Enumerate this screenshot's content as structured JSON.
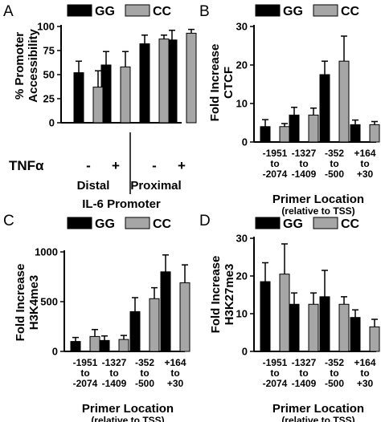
{
  "colors": {
    "gg": "#000000",
    "cc": "#a6a6a6"
  },
  "chart_data": [
    {
      "panel": "A",
      "type": "bar",
      "legend": [
        "GG",
        "CC"
      ],
      "ylabel": "% Promoter\nAccessibility",
      "ylim": [
        0,
        100
      ],
      "yticks": [
        0,
        25,
        50,
        75,
        100
      ],
      "row_label": "TNFα",
      "categories": [
        "-",
        "+",
        "-",
        "+"
      ],
      "groups": [
        "Distal",
        "Proximal"
      ],
      "xlabel": "IL-6 Promoter",
      "series": [
        {
          "name": "GG",
          "values": [
            52,
            60,
            82,
            86
          ],
          "errors": [
            12,
            14,
            9,
            10
          ]
        },
        {
          "name": "CC",
          "values": [
            37,
            58,
            87,
            93
          ],
          "errors": [
            17,
            16,
            4,
            4
          ]
        }
      ]
    },
    {
      "panel": "B",
      "type": "bar",
      "legend": [
        "GG",
        "CC"
      ],
      "ylabel": "Fold Increase\nCTCF",
      "ylim": [
        0,
        30
      ],
      "yticks": [
        0,
        10,
        20,
        30
      ],
      "categories": [
        "-1951\nto\n-2074",
        "-1327\nto\n-1409",
        "-352\nto\n-500",
        "+164\nto\n+30"
      ],
      "xlabel": "Primer Location",
      "xsublabel": "(relative to TSS)",
      "series": [
        {
          "name": "GG",
          "values": [
            4,
            7,
            17.5,
            4.5
          ],
          "errors": [
            1.8,
            2,
            3.5,
            1.2
          ]
        },
        {
          "name": "CC",
          "values": [
            4,
            7,
            21,
            4.5
          ],
          "errors": [
            0.8,
            1.8,
            6.5,
            0.8
          ]
        }
      ]
    },
    {
      "panel": "C",
      "type": "bar",
      "legend": [
        "GG",
        "CC"
      ],
      "ylabel": "Fold Increase\nH3K4me3",
      "ylim": [
        0,
        1000
      ],
      "yticks": [
        0,
        500,
        1000
      ],
      "categories": [
        "-1951\nto\n-2074",
        "-1327\nto\n-1409",
        "-352\nto\n-500",
        "+164\nto\n+30"
      ],
      "xlabel": "Primer Location",
      "xsublabel": "(relative to TSS)",
      "series": [
        {
          "name": "GG",
          "values": [
            100,
            110,
            400,
            800
          ],
          "errors": [
            40,
            45,
            140,
            170
          ]
        },
        {
          "name": "CC",
          "values": [
            150,
            120,
            530,
            690
          ],
          "errors": [
            70,
            40,
            110,
            180
          ]
        }
      ]
    },
    {
      "panel": "D",
      "type": "bar",
      "legend": [
        "GG",
        "CC"
      ],
      "ylabel": "Fold Increase\nH3K27me3",
      "ylim": [
        0,
        30
      ],
      "yticks": [
        0,
        10,
        20,
        30
      ],
      "categories": [
        "-1951\nto\n-2074",
        "-1327\nto\n-1409",
        "-352\nto\n-500",
        "+164\nto\n+30"
      ],
      "xlabel": "Primer Location",
      "xsublabel": "(relative to TSS)",
      "series": [
        {
          "name": "GG",
          "values": [
            18.5,
            12.5,
            14.5,
            9
          ],
          "errors": [
            5,
            3,
            7,
            2
          ]
        },
        {
          "name": "CC",
          "values": [
            20.5,
            12.5,
            12.5,
            6.5
          ],
          "errors": [
            8,
            3,
            2,
            2
          ]
        }
      ]
    }
  ]
}
